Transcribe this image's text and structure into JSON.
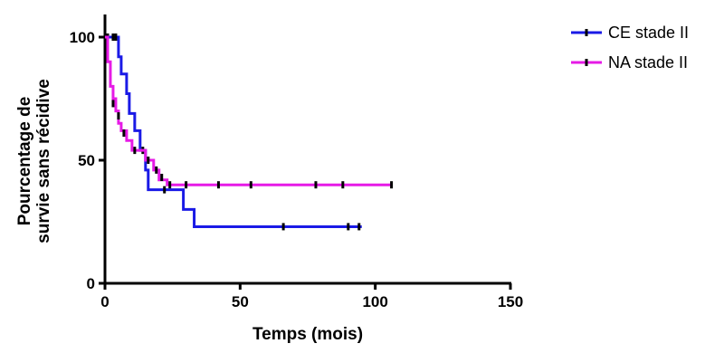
{
  "chart_data": {
    "type": "line",
    "xlabel": "Temps (mois)",
    "ylabel_lines": [
      "Pourcentage de",
      "survie sans récidive"
    ],
    "xlim": [
      0,
      150
    ],
    "ylim": [
      0,
      100
    ],
    "x_ticks": [
      0,
      50,
      100,
      150
    ],
    "y_ticks": [
      0,
      50,
      100
    ],
    "grid": false,
    "legend_position": "top-right",
    "series": [
      {
        "name": "CE stade II",
        "color": "#1a1ae6",
        "steps": [
          [
            0,
            100
          ],
          [
            4,
            100
          ],
          [
            5,
            92
          ],
          [
            6,
            85
          ],
          [
            8,
            77
          ],
          [
            9,
            69
          ],
          [
            11,
            62
          ],
          [
            13,
            54
          ],
          [
            15,
            46
          ],
          [
            16,
            38
          ],
          [
            26,
            38
          ],
          [
            29,
            30
          ],
          [
            33,
            23
          ],
          [
            95,
            23
          ]
        ],
        "censors": [
          [
            1,
            100
          ],
          [
            3,
            100
          ],
          [
            4,
            100
          ],
          [
            14,
            54
          ],
          [
            22,
            38
          ],
          [
            66,
            23
          ],
          [
            90,
            23
          ],
          [
            94,
            23
          ]
        ]
      },
      {
        "name": "NA stade II",
        "color": "#e61ae6",
        "steps": [
          [
            0,
            100
          ],
          [
            1,
            90
          ],
          [
            2,
            80
          ],
          [
            3,
            75
          ],
          [
            4,
            70
          ],
          [
            5,
            65
          ],
          [
            6,
            62
          ],
          [
            8,
            58
          ],
          [
            10,
            54
          ],
          [
            14,
            54
          ],
          [
            15,
            50
          ],
          [
            18,
            46
          ],
          [
            20,
            42
          ],
          [
            23,
            40
          ],
          [
            106,
            40
          ]
        ],
        "censors": [
          [
            3,
            73
          ],
          [
            5,
            68
          ],
          [
            7,
            61
          ],
          [
            11,
            54
          ],
          [
            16,
            50
          ],
          [
            19,
            46
          ],
          [
            21,
            43
          ],
          [
            24,
            40
          ],
          [
            30,
            40
          ],
          [
            42,
            40
          ],
          [
            54,
            40
          ],
          [
            78,
            40
          ],
          [
            88,
            40
          ],
          [
            106,
            40
          ]
        ]
      }
    ]
  }
}
